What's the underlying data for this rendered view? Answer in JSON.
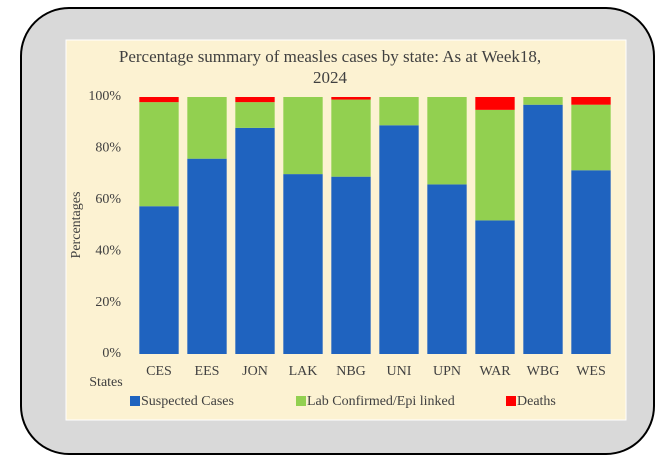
{
  "chart_data": {
    "type": "stacked-bar",
    "title": "Percentage summary of measles cases by state: As at Week18, 2024",
    "y_label": "Percentages",
    "x_label": "States",
    "categories": [
      "CES",
      "EES",
      "JON",
      "LAK",
      "NBG",
      "UNI",
      "UPN",
      "WAR",
      "WBG",
      "WES"
    ],
    "series": [
      {
        "name": "Suspected Cases",
        "color": "#1f63bf",
        "values": [
          57.5,
          76,
          88,
          70,
          69,
          89,
          66,
          52,
          97,
          71.5
        ]
      },
      {
        "name": "Lab Confirmed/Epi linked",
        "color": "#92d050",
        "values": [
          40.5,
          24,
          10,
          30,
          30,
          11,
          34,
          43,
          3,
          25.5
        ]
      },
      {
        "name": "Deaths",
        "color": "#ff0000",
        "values": [
          2,
          0,
          2,
          0,
          1,
          0,
          0,
          5,
          0,
          3
        ]
      }
    ],
    "ylim": [
      0,
      100
    ],
    "yticks": [
      {
        "value": 0,
        "label": "0%"
      },
      {
        "value": 20,
        "label": "20%"
      },
      {
        "value": 40,
        "label": "40%"
      },
      {
        "value": 60,
        "label": "60%"
      },
      {
        "value": 80,
        "label": "80%"
      },
      {
        "value": 100,
        "label": "100%"
      }
    ],
    "grid": false,
    "legend": "bottom"
  }
}
